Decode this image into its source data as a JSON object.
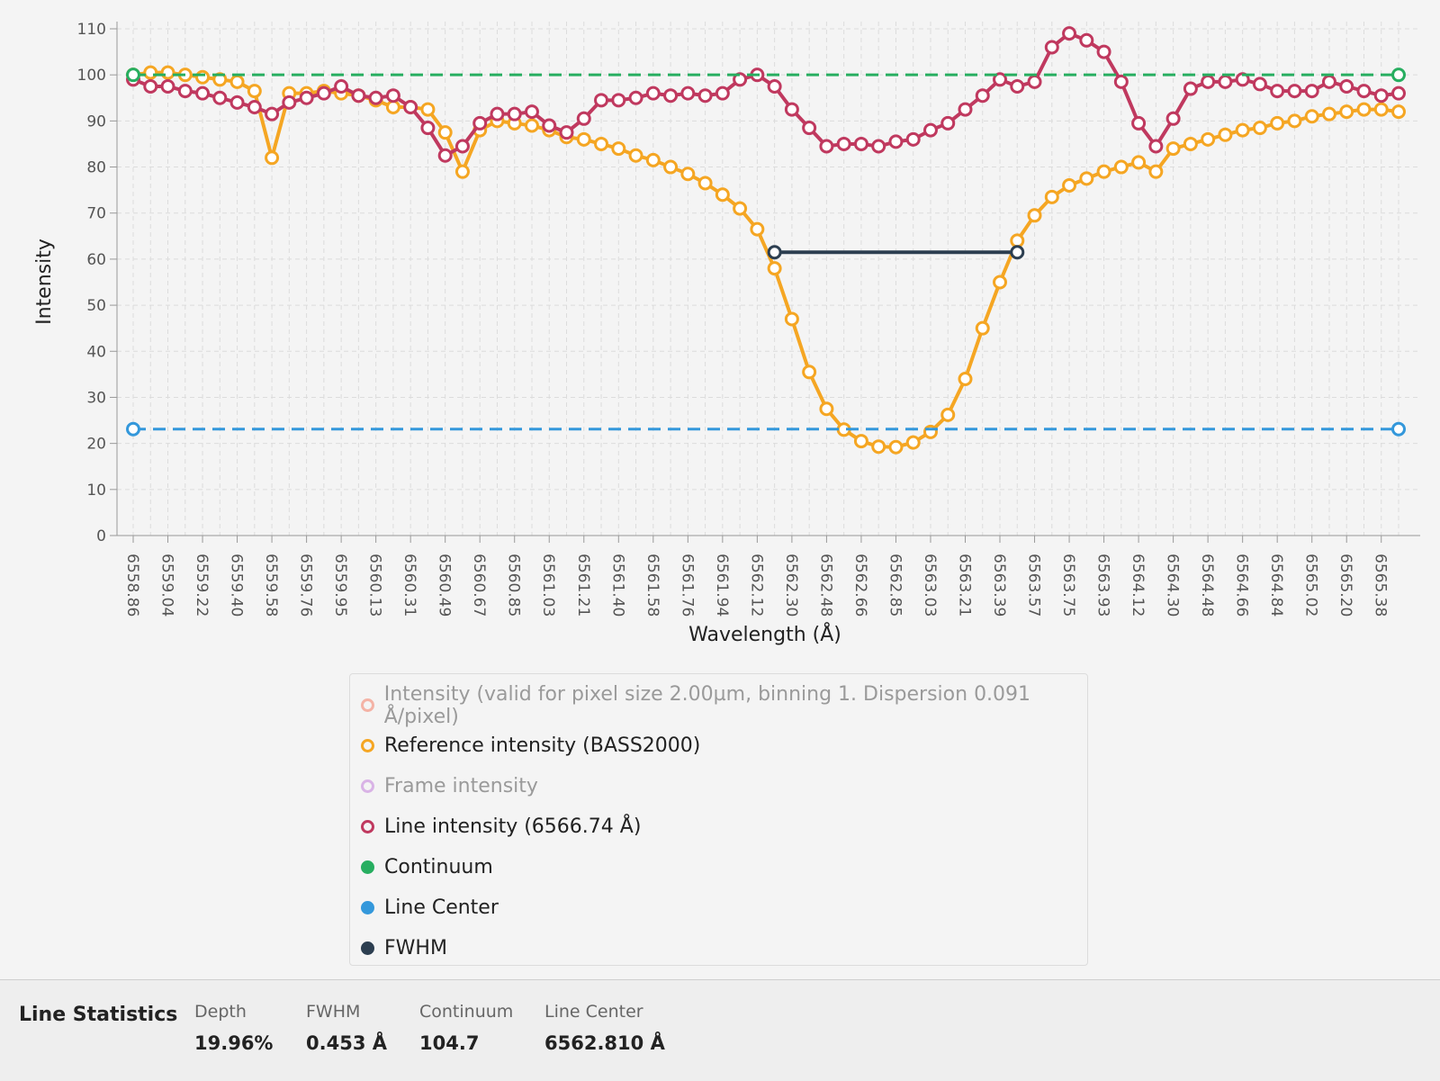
{
  "chart_data": {
    "type": "line",
    "xlabel": "Wavelength (Å)",
    "ylabel": "Intensity",
    "categories": [
      "6558.86",
      null,
      "6559.04",
      null,
      "6559.22",
      null,
      "6559.40",
      null,
      "6559.58",
      null,
      "6559.76",
      null,
      "6559.95",
      null,
      "6560.13",
      null,
      "6560.31",
      null,
      "6560.49",
      null,
      "6560.67",
      null,
      "6560.85",
      null,
      "6561.03",
      null,
      "6561.21",
      null,
      "6561.40",
      null,
      "6561.58",
      null,
      "6561.76",
      null,
      "6561.94",
      null,
      "6562.12",
      null,
      "6562.30",
      null,
      "6562.48",
      null,
      "6562.66",
      null,
      "6562.85",
      null,
      "6563.03",
      null,
      "6563.21",
      null,
      "6563.39",
      null,
      "6563.57",
      null,
      "6563.75",
      null,
      "6563.93",
      null,
      "6564.12",
      null,
      "6564.30",
      null,
      "6564.48",
      null,
      "6564.66",
      null,
      "6564.84",
      null,
      "6565.02",
      null,
      "6565.20",
      null,
      "6565.38",
      null
    ],
    "ylim": [
      0,
      110
    ],
    "yticks": [
      0,
      10,
      20,
      30,
      40,
      50,
      60,
      70,
      80,
      90,
      100,
      110
    ],
    "grid": true,
    "series": [
      {
        "name": "Intensity (valid for pixel size 2.00µm, binning 1. Dispersion 0.091  Å/pixel)",
        "color": "#f4b3a6",
        "visible": false,
        "legend_marker": "hollow"
      },
      {
        "name": "Reference intensity (BASS2000)",
        "color": "#f5a623",
        "visible": true,
        "legend_marker": "hollow",
        "markers": "all",
        "dashed": false,
        "values": [
          100,
          100.5,
          100.5,
          100,
          99.5,
          99,
          98.5,
          96.5,
          82,
          96,
          96,
          96.5,
          96,
          95.5,
          94.5,
          93,
          93,
          92.5,
          87.5,
          79,
          88,
          90,
          89.5,
          89,
          88,
          86.5,
          86,
          85,
          84,
          82.5,
          81.5,
          80,
          78.5,
          76.5,
          74,
          71,
          66.5,
          58,
          47,
          35.5,
          27.5,
          23,
          20.5,
          19.3,
          19.2,
          20.2,
          22.5,
          26.2,
          34,
          45,
          55,
          64,
          69.5,
          73.5,
          76,
          77.5,
          79,
          80,
          81,
          79,
          84,
          85,
          86,
          87,
          88,
          88.5,
          89.5,
          90,
          91,
          91.5,
          92,
          92.5,
          92.5,
          92
        ]
      },
      {
        "name": "Frame intensity",
        "color": "#d9b3e6",
        "visible": false,
        "legend_marker": "hollow"
      },
      {
        "name": "Line intensity (6566.74 Å)",
        "color": "#c0395f",
        "visible": true,
        "legend_marker": "hollow",
        "markers": "all",
        "dashed": false,
        "values": [
          99,
          97.5,
          97.5,
          96.5,
          96,
          95,
          94,
          93,
          91.5,
          94,
          95,
          96,
          97.5,
          95.5,
          95,
          95.5,
          93,
          88.5,
          82.5,
          84.5,
          89.5,
          91.5,
          91.5,
          92,
          89,
          87.5,
          90.5,
          94.5,
          94.5,
          95,
          96,
          95.5,
          96,
          95.5,
          96,
          99,
          100,
          97.5,
          92.5,
          88.5,
          84.5,
          85,
          85,
          84.5,
          85.5,
          86,
          88,
          89.5,
          92.5,
          95.5,
          99,
          97.5,
          98.5,
          106,
          109,
          107.5,
          105,
          98.5,
          89.5,
          84.5,
          90.5,
          97,
          98.5,
          98.5,
          99,
          98,
          96.5,
          96.5,
          96.5,
          98.5,
          97.5,
          96.5,
          95.5,
          96
        ]
      },
      {
        "name": "Continuum",
        "color": "#27ae60",
        "visible": true,
        "legend_marker": "filled",
        "markers": "ends",
        "dashed": true,
        "values": [
          100,
          100,
          100,
          100,
          100,
          100,
          100,
          100,
          100,
          100,
          100,
          100,
          100,
          100,
          100,
          100,
          100,
          100,
          100,
          100,
          100,
          100,
          100,
          100,
          100,
          100,
          100,
          100,
          100,
          100,
          100,
          100,
          100,
          100,
          100,
          100,
          100,
          100,
          100,
          100,
          100,
          100,
          100,
          100,
          100,
          100,
          100,
          100,
          100,
          100,
          100,
          100,
          100,
          100,
          100,
          100,
          100,
          100,
          100,
          100,
          100,
          100,
          100,
          100,
          100,
          100,
          100,
          100,
          100,
          100,
          100,
          100,
          100,
          100
        ]
      },
      {
        "name": "Line Center",
        "color": "#3498db",
        "visible": true,
        "legend_marker": "filled",
        "markers": "ends",
        "dashed": true,
        "values": [
          23.1,
          23.1,
          23.1,
          23.1,
          23.1,
          23.1,
          23.1,
          23.1,
          23.1,
          23.1,
          23.1,
          23.1,
          23.1,
          23.1,
          23.1,
          23.1,
          23.1,
          23.1,
          23.1,
          23.1,
          23.1,
          23.1,
          23.1,
          23.1,
          23.1,
          23.1,
          23.1,
          23.1,
          23.1,
          23.1,
          23.1,
          23.1,
          23.1,
          23.1,
          23.1,
          23.1,
          23.1,
          23.1,
          23.1,
          23.1,
          23.1,
          23.1,
          23.1,
          23.1,
          23.1,
          23.1,
          23.1,
          23.1,
          23.1,
          23.1,
          23.1,
          23.1,
          23.1,
          23.1,
          23.1,
          23.1,
          23.1,
          23.1,
          23.1,
          23.1,
          23.1,
          23.1,
          23.1,
          23.1,
          23.1,
          23.1,
          23.1,
          23.1,
          23.1,
          23.1,
          23.1,
          23.1,
          23.1,
          23.1
        ]
      },
      {
        "name": "FWHM",
        "color": "#2c3e50",
        "visible": true,
        "legend_marker": "filled",
        "markers": "ends",
        "dashed": false,
        "values": [
          null,
          null,
          null,
          null,
          null,
          null,
          null,
          null,
          null,
          null,
          null,
          null,
          null,
          null,
          null,
          null,
          null,
          null,
          null,
          null,
          null,
          null,
          null,
          null,
          null,
          null,
          null,
          null,
          null,
          null,
          null,
          null,
          null,
          null,
          null,
          null,
          null,
          61.5,
          61.5,
          61.5,
          61.5,
          61.5,
          61.5,
          61.5,
          61.5,
          61.5,
          61.5,
          61.5,
          61.5,
          61.5,
          61.5,
          61.5,
          null,
          null,
          null,
          null,
          null,
          null,
          null,
          null,
          null,
          null,
          null,
          null,
          null,
          null,
          null,
          null,
          null,
          null,
          null,
          null,
          null,
          null
        ]
      }
    ]
  },
  "stats": {
    "title": "Line Statistics",
    "items": [
      {
        "label": "Depth",
        "value": "19.96%"
      },
      {
        "label": "FWHM",
        "value": "0.453 Å"
      },
      {
        "label": "Continuum",
        "value": "104.7"
      },
      {
        "label": "Line Center",
        "value": "6562.810 Å"
      }
    ]
  }
}
